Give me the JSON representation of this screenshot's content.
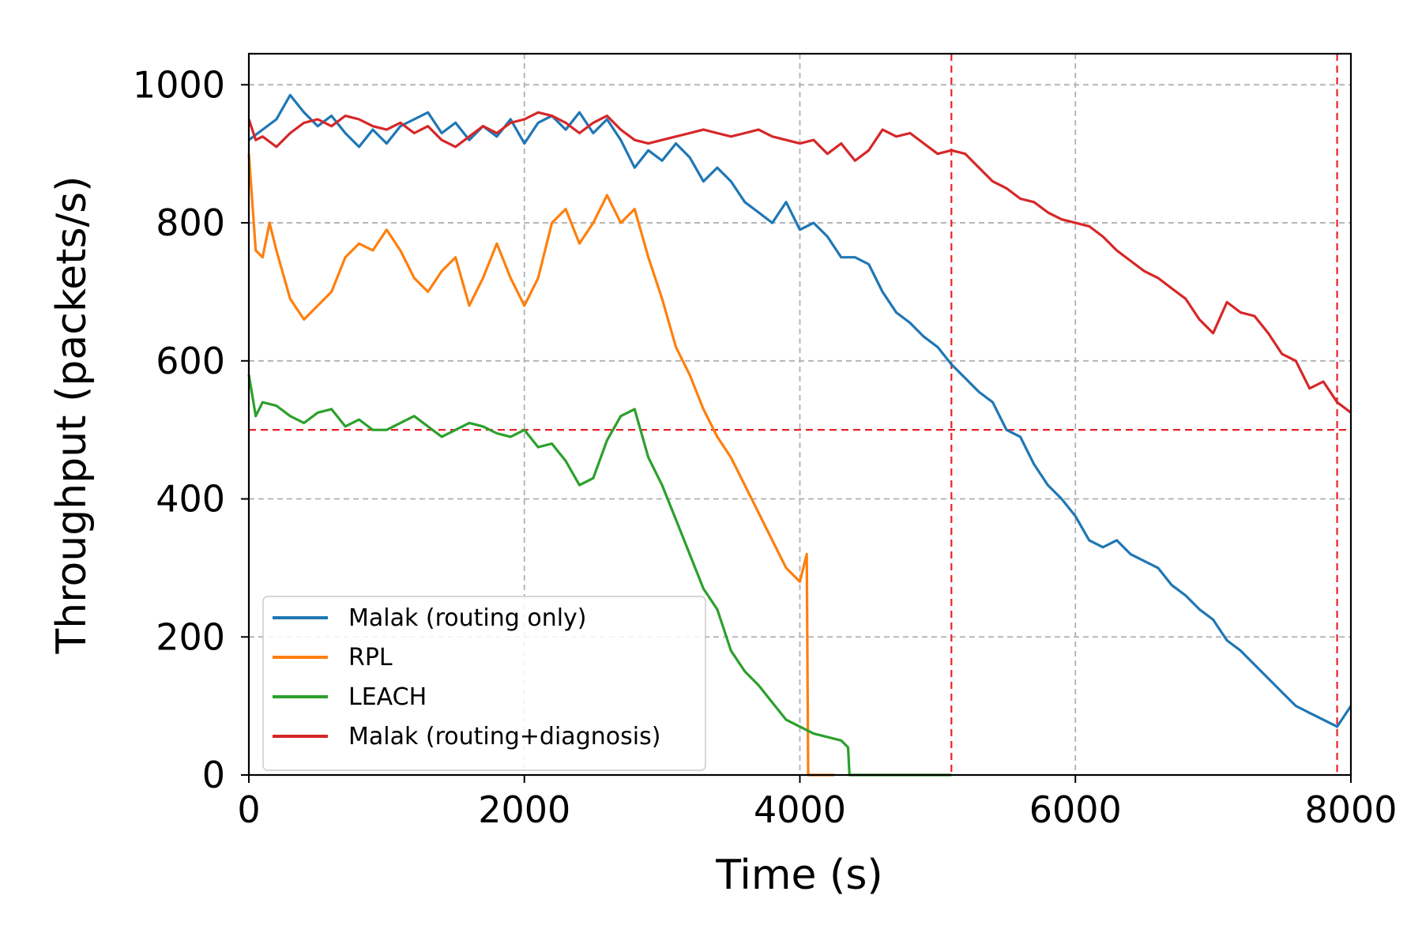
{
  "chart_data": {
    "type": "line",
    "xlabel": "Time (s)",
    "ylabel": "Throughput (packets/s)",
    "xlim": [
      0,
      8000
    ],
    "ylim": [
      0,
      1045
    ],
    "xticks": [
      0,
      2000,
      4000,
      6000,
      8000
    ],
    "yticks": [
      0,
      200,
      400,
      600,
      800,
      1000
    ],
    "grid": true,
    "legend_position": "lower-left",
    "reference_lines": {
      "color": "#e8232a",
      "horizontal_y": 500,
      "vertical_x": [
        5100,
        7900
      ]
    },
    "series": [
      {
        "name": "Malak (routing only)",
        "color": "#1f77b4",
        "points": [
          [
            0,
            920
          ],
          [
            100,
            935
          ],
          [
            200,
            950
          ],
          [
            300,
            985
          ],
          [
            400,
            960
          ],
          [
            500,
            940
          ],
          [
            600,
            955
          ],
          [
            700,
            930
          ],
          [
            800,
            910
          ],
          [
            900,
            935
          ],
          [
            1000,
            915
          ],
          [
            1100,
            940
          ],
          [
            1200,
            950
          ],
          [
            1300,
            960
          ],
          [
            1400,
            930
          ],
          [
            1500,
            945
          ],
          [
            1600,
            920
          ],
          [
            1700,
            940
          ],
          [
            1800,
            925
          ],
          [
            1900,
            950
          ],
          [
            2000,
            915
          ],
          [
            2100,
            945
          ],
          [
            2200,
            955
          ],
          [
            2300,
            935
          ],
          [
            2400,
            960
          ],
          [
            2500,
            930
          ],
          [
            2600,
            950
          ],
          [
            2700,
            920
          ],
          [
            2800,
            880
          ],
          [
            2900,
            905
          ],
          [
            3000,
            890
          ],
          [
            3100,
            915
          ],
          [
            3200,
            895
          ],
          [
            3300,
            860
          ],
          [
            3400,
            880
          ],
          [
            3500,
            860
          ],
          [
            3600,
            830
          ],
          [
            3700,
            815
          ],
          [
            3800,
            800
          ],
          [
            3900,
            830
          ],
          [
            4000,
            790
          ],
          [
            4100,
            800
          ],
          [
            4200,
            780
          ],
          [
            4300,
            750
          ],
          [
            4400,
            750
          ],
          [
            4500,
            740
          ],
          [
            4600,
            700
          ],
          [
            4700,
            670
          ],
          [
            4800,
            655
          ],
          [
            4900,
            635
          ],
          [
            5000,
            620
          ],
          [
            5100,
            595
          ],
          [
            5200,
            575
          ],
          [
            5300,
            555
          ],
          [
            5400,
            540
          ],
          [
            5500,
            500
          ],
          [
            5600,
            490
          ],
          [
            5700,
            450
          ],
          [
            5800,
            420
          ],
          [
            5900,
            400
          ],
          [
            6000,
            375
          ],
          [
            6100,
            340
          ],
          [
            6200,
            330
          ],
          [
            6300,
            340
          ],
          [
            6400,
            320
          ],
          [
            6500,
            310
          ],
          [
            6600,
            300
          ],
          [
            6700,
            275
          ],
          [
            6800,
            260
          ],
          [
            6900,
            240
          ],
          [
            7000,
            225
          ],
          [
            7100,
            195
          ],
          [
            7200,
            180
          ],
          [
            7300,
            160
          ],
          [
            7400,
            140
          ],
          [
            7500,
            120
          ],
          [
            7600,
            100
          ],
          [
            7700,
            90
          ],
          [
            7800,
            80
          ],
          [
            7900,
            70
          ],
          [
            8000,
            100
          ]
        ]
      },
      {
        "name": "RPL",
        "color": "#ff7f0e",
        "points": [
          [
            0,
            900
          ],
          [
            50,
            760
          ],
          [
            100,
            750
          ],
          [
            150,
            800
          ],
          [
            200,
            760
          ],
          [
            300,
            690
          ],
          [
            400,
            660
          ],
          [
            500,
            680
          ],
          [
            600,
            700
          ],
          [
            700,
            750
          ],
          [
            800,
            770
          ],
          [
            900,
            760
          ],
          [
            1000,
            790
          ],
          [
            1100,
            760
          ],
          [
            1200,
            720
          ],
          [
            1300,
            700
          ],
          [
            1400,
            730
          ],
          [
            1500,
            750
          ],
          [
            1600,
            680
          ],
          [
            1700,
            720
          ],
          [
            1800,
            770
          ],
          [
            1900,
            720
          ],
          [
            2000,
            680
          ],
          [
            2100,
            720
          ],
          [
            2200,
            800
          ],
          [
            2300,
            820
          ],
          [
            2400,
            770
          ],
          [
            2500,
            800
          ],
          [
            2600,
            840
          ],
          [
            2700,
            800
          ],
          [
            2800,
            820
          ],
          [
            2900,
            750
          ],
          [
            3000,
            690
          ],
          [
            3100,
            620
          ],
          [
            3200,
            580
          ],
          [
            3300,
            530
          ],
          [
            3400,
            490
          ],
          [
            3500,
            460
          ],
          [
            3600,
            420
          ],
          [
            3700,
            380
          ],
          [
            3800,
            340
          ],
          [
            3900,
            300
          ],
          [
            4000,
            280
          ],
          [
            4050,
            320
          ],
          [
            4060,
            0
          ],
          [
            4250,
            0
          ]
        ]
      },
      {
        "name": "LEACH",
        "color": "#2ca02c",
        "points": [
          [
            0,
            580
          ],
          [
            50,
            520
          ],
          [
            100,
            540
          ],
          [
            200,
            535
          ],
          [
            300,
            520
          ],
          [
            400,
            510
          ],
          [
            500,
            525
          ],
          [
            600,
            530
          ],
          [
            700,
            505
          ],
          [
            800,
            515
          ],
          [
            900,
            500
          ],
          [
            1000,
            500
          ],
          [
            1100,
            510
          ],
          [
            1200,
            520
          ],
          [
            1300,
            505
          ],
          [
            1400,
            490
          ],
          [
            1500,
            500
          ],
          [
            1600,
            510
          ],
          [
            1700,
            505
          ],
          [
            1800,
            495
          ],
          [
            1900,
            490
          ],
          [
            2000,
            500
          ],
          [
            2100,
            475
          ],
          [
            2200,
            480
          ],
          [
            2300,
            455
          ],
          [
            2400,
            420
          ],
          [
            2500,
            430
          ],
          [
            2600,
            485
          ],
          [
            2700,
            520
          ],
          [
            2800,
            530
          ],
          [
            2900,
            460
          ],
          [
            3000,
            420
          ],
          [
            3100,
            370
          ],
          [
            3200,
            320
          ],
          [
            3300,
            270
          ],
          [
            3400,
            240
          ],
          [
            3500,
            180
          ],
          [
            3600,
            150
          ],
          [
            3700,
            130
          ],
          [
            3800,
            105
          ],
          [
            3900,
            80
          ],
          [
            4000,
            70
          ],
          [
            4100,
            60
          ],
          [
            4200,
            55
          ],
          [
            4300,
            50
          ],
          [
            4350,
            40
          ],
          [
            4360,
            0
          ],
          [
            5100,
            0
          ]
        ]
      },
      {
        "name": "Malak (routing+diagnosis)",
        "color": "#d62728",
        "points": [
          [
            0,
            950
          ],
          [
            50,
            920
          ],
          [
            100,
            925
          ],
          [
            200,
            910
          ],
          [
            300,
            930
          ],
          [
            400,
            945
          ],
          [
            500,
            950
          ],
          [
            600,
            940
          ],
          [
            700,
            955
          ],
          [
            800,
            950
          ],
          [
            900,
            940
          ],
          [
            1000,
            935
          ],
          [
            1100,
            945
          ],
          [
            1200,
            930
          ],
          [
            1300,
            940
          ],
          [
            1400,
            920
          ],
          [
            1500,
            910
          ],
          [
            1600,
            925
          ],
          [
            1700,
            940
          ],
          [
            1800,
            930
          ],
          [
            1900,
            945
          ],
          [
            2000,
            950
          ],
          [
            2100,
            960
          ],
          [
            2200,
            955
          ],
          [
            2300,
            945
          ],
          [
            2400,
            930
          ],
          [
            2500,
            945
          ],
          [
            2600,
            955
          ],
          [
            2700,
            935
          ],
          [
            2800,
            920
          ],
          [
            2900,
            915
          ],
          [
            3000,
            920
          ],
          [
            3100,
            925
          ],
          [
            3200,
            930
          ],
          [
            3300,
            935
          ],
          [
            3400,
            930
          ],
          [
            3500,
            925
          ],
          [
            3600,
            930
          ],
          [
            3700,
            935
          ],
          [
            3800,
            925
          ],
          [
            3900,
            920
          ],
          [
            4000,
            915
          ],
          [
            4100,
            920
          ],
          [
            4200,
            900
          ],
          [
            4300,
            915
          ],
          [
            4400,
            890
          ],
          [
            4500,
            905
          ],
          [
            4600,
            935
          ],
          [
            4700,
            925
          ],
          [
            4800,
            930
          ],
          [
            4900,
            915
          ],
          [
            5000,
            900
          ],
          [
            5100,
            905
          ],
          [
            5200,
            900
          ],
          [
            5300,
            880
          ],
          [
            5400,
            860
          ],
          [
            5500,
            850
          ],
          [
            5600,
            835
          ],
          [
            5700,
            830
          ],
          [
            5800,
            815
          ],
          [
            5900,
            805
          ],
          [
            6000,
            800
          ],
          [
            6100,
            795
          ],
          [
            6200,
            780
          ],
          [
            6300,
            760
          ],
          [
            6400,
            745
          ],
          [
            6500,
            730
          ],
          [
            6600,
            720
          ],
          [
            6700,
            705
          ],
          [
            6800,
            690
          ],
          [
            6900,
            660
          ],
          [
            7000,
            640
          ],
          [
            7100,
            685
          ],
          [
            7200,
            670
          ],
          [
            7300,
            665
          ],
          [
            7400,
            640
          ],
          [
            7500,
            610
          ],
          [
            7600,
            600
          ],
          [
            7700,
            560
          ],
          [
            7800,
            570
          ],
          [
            7900,
            540
          ],
          [
            8000,
            525
          ]
        ]
      }
    ]
  }
}
